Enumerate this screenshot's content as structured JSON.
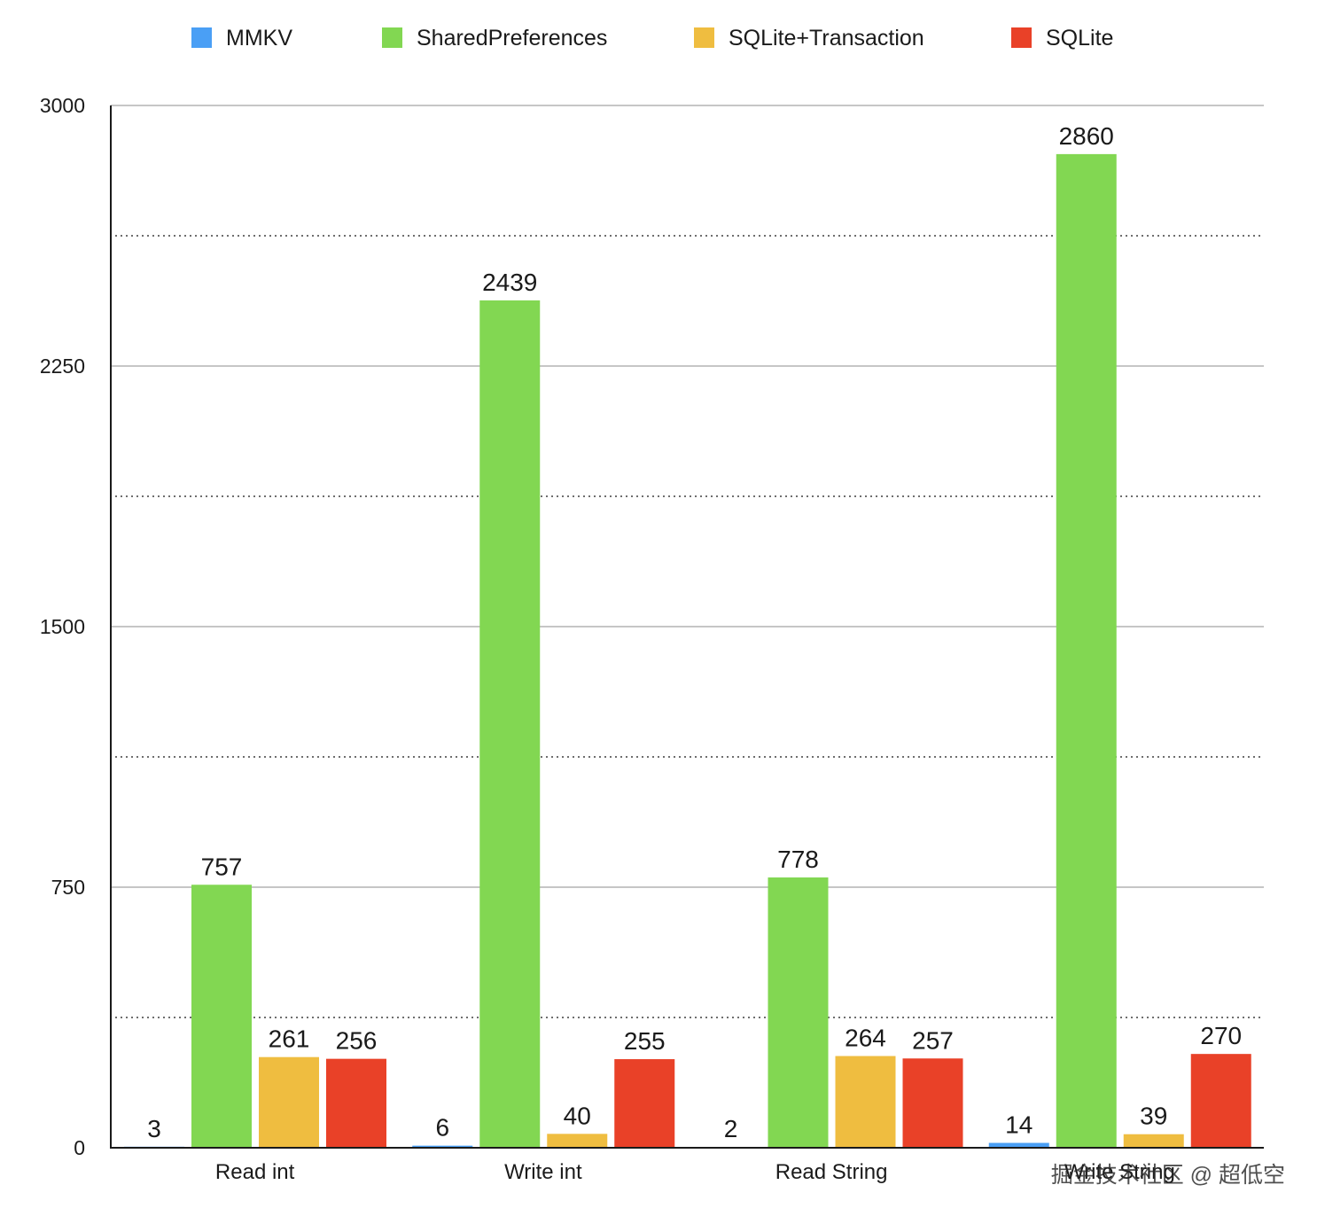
{
  "chart_data": {
    "type": "bar",
    "title": "",
    "xlabel": "",
    "ylabel": "",
    "categories": [
      "Read int",
      "Write int",
      "Read String",
      "Write String"
    ],
    "series": [
      {
        "name": "MMKV",
        "color": "#4a9ff5",
        "values": [
          3,
          6,
          2,
          14
        ]
      },
      {
        "name": "SharedPreferences",
        "color": "#82d752",
        "values": [
          757,
          2439,
          778,
          2860
        ]
      },
      {
        "name": "SQLite+Transaction",
        "color": "#efbd40",
        "values": [
          261,
          40,
          264,
          39
        ]
      },
      {
        "name": "SQLite",
        "color": "#e94128",
        "values": [
          256,
          255,
          257,
          270
        ]
      }
    ],
    "ylim": [
      0,
      3000
    ],
    "yticks": [
      0,
      750,
      1500,
      2250,
      3000
    ],
    "minor_gridlines": [
      375,
      1125,
      1875,
      2625
    ],
    "grid": true,
    "legend_position": "top"
  },
  "watermark": "掘金技术社区 @ 超低空"
}
